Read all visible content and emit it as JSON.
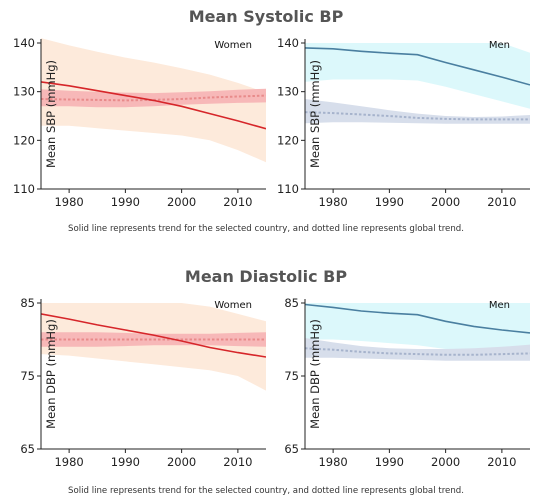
{
  "colors": {
    "women_line": "#d6262a",
    "women_band": "#fdeadb",
    "women_global_line": "#e88a8a",
    "women_global_band": "#f7b8b8",
    "men_line": "#4a7fa0",
    "men_band": "#dcf8fb",
    "men_global_line": "#a6b3cc",
    "men_global_band": "#d7deeb",
    "axis": "#222222"
  },
  "chart_data": [
    {
      "id": "sbp",
      "type": "line",
      "title": "Mean Systolic BP",
      "caption": "Solid line represents trend for the selected country, and dotted line represents global trend.",
      "ylim": [
        110,
        140
      ],
      "yticks": [
        110,
        120,
        130,
        140
      ],
      "xlim": [
        1975,
        2015
      ],
      "xticks": [
        1980,
        1990,
        2000,
        2010
      ],
      "panels": [
        {
          "label": "Women",
          "ylabel": "Mean SBP (mmHg)",
          "x": [
            1975,
            1980,
            1985,
            1990,
            1995,
            2000,
            2005,
            2010,
            2015
          ],
          "country": [
            132,
            131.2,
            130.2,
            129.2,
            128.2,
            127,
            125.5,
            124,
            122.4
          ],
          "country_lower": [
            123,
            123,
            122.5,
            122,
            121.5,
            121,
            120,
            118,
            115.5
          ],
          "country_upper": [
            141,
            139.5,
            138.2,
            137,
            136,
            134.8,
            133.5,
            131.8,
            129.8
          ],
          "global": [
            128.5,
            128.4,
            128.3,
            128.2,
            128.3,
            128.5,
            128.8,
            129,
            129.2
          ],
          "global_lower": [
            127,
            127,
            126.8,
            126.8,
            127,
            127.3,
            127.5,
            127.7,
            127.8
          ],
          "global_upper": [
            130.5,
            130.2,
            130,
            129.8,
            129.7,
            129.9,
            130.1,
            130.4,
            130.6
          ]
        },
        {
          "label": "Men",
          "ylabel": "Mean SBP (mmHg)",
          "x": [
            1975,
            1980,
            1985,
            1990,
            1995,
            2000,
            2005,
            2010,
            2015
          ],
          "country": [
            139,
            138.8,
            138.3,
            137.9,
            137.6,
            136,
            134.5,
            133,
            131.4
          ],
          "country_lower": [
            132,
            132.5,
            132.5,
            132.5,
            132.3,
            131,
            129.5,
            128,
            126.5
          ],
          "country_upper": [
            140,
            140,
            140,
            140,
            140,
            140,
            140,
            140,
            138
          ],
          "global": [
            125.8,
            125.6,
            125.3,
            125,
            124.6,
            124.4,
            124.3,
            124.3,
            124.3
          ],
          "global_lower": [
            123.5,
            123.7,
            123.7,
            123.6,
            123.5,
            123.4,
            123.4,
            123.4,
            123.4
          ],
          "global_upper": [
            128.5,
            127.8,
            127,
            126.2,
            125.5,
            125,
            124.8,
            124.9,
            125.2
          ]
        }
      ]
    },
    {
      "id": "dbp",
      "type": "line",
      "title": "Mean Diastolic BP",
      "caption": "Solid line represents trend for the selected country, and dotted line represents global trend.",
      "ylim": [
        65,
        85
      ],
      "yticks": [
        65,
        75,
        85
      ],
      "xlim": [
        1975,
        2015
      ],
      "xticks": [
        1980,
        1990,
        2000,
        2010
      ],
      "panels": [
        {
          "label": "Women",
          "ylabel": "Mean DBP (mmHg)",
          "x": [
            1975,
            1980,
            1985,
            1990,
            1995,
            2000,
            2005,
            2010,
            2015
          ],
          "country": [
            83.5,
            82.8,
            82,
            81.3,
            80.6,
            79.8,
            78.9,
            78.2,
            77.6
          ],
          "country_lower": [
            78,
            77.8,
            77.4,
            77,
            76.6,
            76.2,
            75.8,
            75,
            73
          ],
          "country_upper": [
            85,
            85,
            85,
            85,
            85,
            85,
            84.5,
            83.5,
            82.5
          ],
          "global": [
            80,
            80,
            80,
            80,
            80,
            80,
            80,
            80,
            80
          ],
          "global_lower": [
            79,
            79,
            79,
            79.1,
            79.2,
            79.2,
            79.2,
            79.1,
            79
          ],
          "global_upper": [
            81,
            81,
            81,
            80.9,
            80.8,
            80.8,
            80.8,
            80.9,
            81
          ]
        },
        {
          "label": "Men",
          "ylabel": "Mean DBP (mmHg)",
          "x": [
            1975,
            1980,
            1985,
            1990,
            1995,
            2000,
            2005,
            2010,
            2015
          ],
          "country": [
            84.8,
            84.4,
            83.9,
            83.6,
            83.4,
            82.5,
            81.8,
            81.3,
            80.9
          ],
          "country_lower": [
            80,
            80,
            79.8,
            79.5,
            79.2,
            78.7,
            78.2,
            77.8,
            77.5
          ],
          "country_upper": [
            85,
            85,
            85,
            85,
            85,
            85,
            85,
            85,
            85
          ],
          "global": [
            78.8,
            78.6,
            78.3,
            78.1,
            78,
            77.9,
            77.9,
            78,
            78.1
          ],
          "global_lower": [
            77.5,
            77.5,
            77.4,
            77.3,
            77.2,
            77.1,
            77.1,
            77.1,
            77.1
          ],
          "global_upper": [
            80.2,
            79.6,
            79.1,
            78.8,
            78.7,
            78.7,
            78.8,
            79,
            79.3
          ]
        }
      ]
    }
  ]
}
